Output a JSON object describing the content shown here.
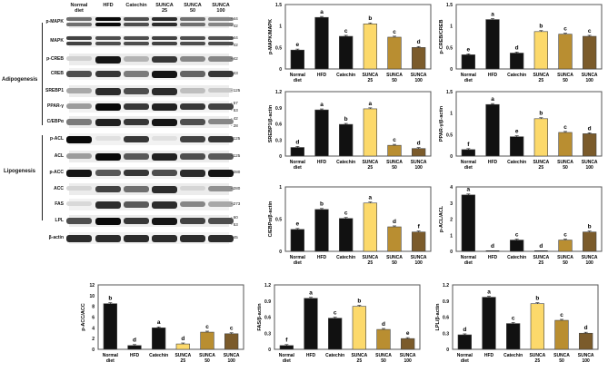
{
  "blot": {
    "lanes": [
      [
        "Normal",
        "diet"
      ],
      [
        "HFD",
        ""
      ],
      [
        "Catechin",
        ""
      ],
      [
        "SUNCA",
        "25"
      ],
      [
        "SUNCA",
        "50"
      ],
      [
        "SUNCA",
        "100"
      ]
    ],
    "groups": {
      "adipogenesis": "Adipogenesis",
      "lipogenesis": "Lipogenesis"
    },
    "rows": [
      {
        "label": "p-MAPK",
        "mw": [
          "44",
          "42"
        ],
        "intensity": [
          0.55,
          1.0,
          0.7,
          0.85,
          0.55,
          0.45
        ],
        "double": true
      },
      {
        "label": "MAPK",
        "mw": [
          "44",
          "42"
        ],
        "intensity": [
          0.75,
          0.7,
          0.7,
          0.75,
          0.7,
          0.7
        ],
        "double": true
      },
      {
        "label": "p-CREB",
        "mw": [
          "42"
        ],
        "intensity": [
          0.12,
          0.95,
          0.25,
          0.8,
          0.45,
          0.45
        ]
      },
      {
        "label": "CREB",
        "mw": [
          "43"
        ],
        "intensity": [
          0.7,
          0.8,
          0.5,
          0.95,
          0.6,
          0.8
        ]
      },
      {
        "label": "SREBP1",
        "mw": [
          "125"
        ],
        "intensity": [
          0.3,
          0.85,
          0.7,
          0.85,
          0.2,
          0.15
        ]
      },
      {
        "label": "PPAR-γ",
        "mw": [
          "57",
          "53"
        ],
        "intensity": [
          0.35,
          1.0,
          0.8,
          0.9,
          0.8,
          0.75
        ]
      },
      {
        "label": "C/EBPα",
        "mw": [
          "42",
          "28"
        ],
        "intensity": [
          0.5,
          0.9,
          0.8,
          0.95,
          0.7,
          0.45
        ]
      },
      {
        "label": "p-ACL",
        "mw": [
          "125"
        ],
        "intensity": [
          1.0,
          0.05,
          0.8,
          0.05,
          0.75,
          0.8
        ]
      },
      {
        "label": "ACL",
        "mw": [
          "125"
        ],
        "intensity": [
          0.35,
          1.0,
          0.65,
          0.9,
          0.7,
          0.65
        ]
      },
      {
        "label": "p-ACC",
        "mw": [
          "280"
        ],
        "intensity": [
          0.95,
          0.65,
          0.8,
          0.7,
          0.85,
          0.95
        ]
      },
      {
        "label": "ACC",
        "mw": [
          "280"
        ],
        "intensity": [
          0.1,
          0.75,
          0.55,
          0.85,
          0.1,
          0.4
        ]
      },
      {
        "label": "FAS",
        "mw": [
          "273"
        ],
        "intensity": [
          0.08,
          0.85,
          0.65,
          0.85,
          0.45,
          0.3
        ]
      },
      {
        "label": "LPL",
        "mw": [
          "60",
          "53"
        ],
        "intensity": [
          0.7,
          1.0,
          0.8,
          0.95,
          0.75,
          0.7
        ]
      },
      {
        "label": "β-actin",
        "mw": [
          "45"
        ],
        "intensity": [
          0.85,
          0.85,
          0.85,
          0.85,
          0.85,
          0.85
        ]
      }
    ]
  },
  "colors": {
    "Normal diet": "#111111",
    "HFD": "#111111",
    "Catechin": "#111111",
    "SUNCA 25": "#fcd96b",
    "SUNCA 50": "#b98e31",
    "SUNCA 100": "#7b5b2b"
  },
  "chart_data": [
    {
      "type": "bar",
      "ylabel": "p-MAPK/MAPK",
      "categories": [
        [
          "Normal",
          "diet"
        ],
        [
          "HFD",
          ""
        ],
        [
          "Catechin",
          ""
        ],
        [
          "SUNCA",
          "25"
        ],
        [
          "SUNCA",
          "50"
        ],
        [
          "SUNCA",
          "100"
        ]
      ],
      "values": [
        0.44,
        1.2,
        0.76,
        1.05,
        0.74,
        0.5
      ],
      "letters": [
        "e",
        "a",
        "c",
        "b",
        "c",
        "d"
      ],
      "ylim": [
        0,
        1.5
      ],
      "yticks": [
        "0",
        "0.5",
        "1",
        "1.5"
      ]
    },
    {
      "type": "bar",
      "ylabel": "p-CREB/CREB",
      "categories": [
        [
          "Normal",
          "diet"
        ],
        [
          "HFD",
          ""
        ],
        [
          "Catechin",
          ""
        ],
        [
          "SUNCA",
          "25"
        ],
        [
          "SUNCA",
          "50"
        ],
        [
          "SUNCA",
          "100"
        ]
      ],
      "values": [
        0.33,
        1.15,
        0.37,
        0.87,
        0.81,
        0.76
      ],
      "letters": [
        "e",
        "a",
        "d",
        "b",
        "c",
        "c"
      ],
      "ylim": [
        0,
        1.5
      ],
      "yticks": [
        "0",
        "0.5",
        "1",
        "1.5"
      ]
    },
    {
      "type": "bar",
      "ylabel": "SREBP1/β-actin",
      "categories": [
        [
          "Normal",
          "diet"
        ],
        [
          "HFD",
          ""
        ],
        [
          "Catechin",
          ""
        ],
        [
          "SUNCA",
          "25"
        ],
        [
          "SUNCA",
          "50"
        ],
        [
          "SUNCA",
          "100"
        ]
      ],
      "values": [
        0.16,
        0.86,
        0.59,
        0.88,
        0.2,
        0.14
      ],
      "letters": [
        "d",
        "a",
        "b",
        "a",
        "c",
        "d"
      ],
      "ylim": [
        0,
        1.2
      ],
      "yticks": [
        "0",
        "0.3",
        "0.6",
        "0.9",
        "1.2"
      ]
    },
    {
      "type": "bar",
      "ylabel": "PPAR-γ/β-actin",
      "categories": [
        [
          "Normal",
          "diet"
        ],
        [
          "HFD",
          ""
        ],
        [
          "Catechin",
          ""
        ],
        [
          "SUNCA",
          "25"
        ],
        [
          "SUNCA",
          "50"
        ],
        [
          "SUNCA",
          "100"
        ]
      ],
      "values": [
        0.15,
        1.2,
        0.45,
        0.87,
        0.55,
        0.52
      ],
      "letters": [
        "f",
        "a",
        "e",
        "b",
        "c",
        "d"
      ],
      "ylim": [
        0,
        1.5
      ],
      "yticks": [
        "0",
        "0.5",
        "1",
        "1.5"
      ]
    },
    {
      "type": "bar",
      "ylabel": "C/EBPα/β-actin",
      "categories": [
        [
          "Normal",
          "diet"
        ],
        [
          "HFD",
          ""
        ],
        [
          "Catechin",
          ""
        ],
        [
          "SUNCA",
          "25"
        ],
        [
          "SUNCA",
          "50"
        ],
        [
          "SUNCA",
          "100"
        ]
      ],
      "values": [
        0.34,
        0.65,
        0.51,
        0.75,
        0.38,
        0.3
      ],
      "letters": [
        "e",
        "b",
        "c",
        "a",
        "d",
        "f"
      ],
      "ylim": [
        0,
        1
      ],
      "yticks": [
        "0",
        "0.5",
        "1"
      ]
    },
    {
      "type": "bar",
      "ylabel": "p-ACL/ACL",
      "categories": [
        [
          "Normal",
          "diet"
        ],
        [
          "HFD",
          ""
        ],
        [
          "Catechin",
          ""
        ],
        [
          "SUNCA",
          "25"
        ],
        [
          "SUNCA",
          "50"
        ],
        [
          "SUNCA",
          "100"
        ]
      ],
      "values": [
        3.5,
        0,
        0.7,
        0,
        0.7,
        1.2
      ],
      "letters": [
        "a",
        "d",
        "c",
        "d",
        "c",
        "b"
      ],
      "ylim": [
        0,
        4
      ],
      "yticks": [
        "0",
        "1",
        "2",
        "3",
        "4"
      ]
    },
    {
      "type": "bar",
      "ylabel": "p-ACC/ACC",
      "categories": [
        [
          "Normal",
          "diet"
        ],
        [
          "HFD",
          ""
        ],
        [
          "Catechin",
          ""
        ],
        [
          "SUNCA",
          "25"
        ],
        [
          "SUNCA",
          "50"
        ],
        [
          "SUNCA",
          "100"
        ]
      ],
      "values": [
        8.5,
        0.7,
        4.0,
        1.0,
        3.2,
        2.9
      ],
      "letters": [
        "b",
        "d",
        "a",
        "d",
        "c",
        "c"
      ],
      "ylim": [
        0,
        12
      ],
      "yticks": [
        "0",
        "2",
        "4",
        "6",
        "8",
        "10",
        "12"
      ]
    },
    {
      "type": "bar",
      "ylabel": "FAS/β-actin",
      "categories": [
        [
          "Normal",
          "diet"
        ],
        [
          "HFD",
          ""
        ],
        [
          "Catechin",
          ""
        ],
        [
          "SUNCA",
          "25"
        ],
        [
          "SUNCA",
          "50"
        ],
        [
          "SUNCA",
          "100"
        ]
      ],
      "values": [
        0.07,
        0.95,
        0.58,
        0.8,
        0.37,
        0.2
      ],
      "letters": [
        "f",
        "a",
        "c",
        "b",
        "d",
        "e"
      ],
      "ylim": [
        0,
        1.2
      ],
      "yticks": [
        "0",
        "0.3",
        "0.6",
        "0.9",
        "1.2"
      ]
    },
    {
      "type": "bar",
      "ylabel": "LPL/β-actin",
      "categories": [
        [
          "Normal",
          "diet"
        ],
        [
          "HFD",
          ""
        ],
        [
          "Catechin",
          ""
        ],
        [
          "SUNCA",
          "25"
        ],
        [
          "SUNCA",
          "50"
        ],
        [
          "SUNCA",
          "100"
        ]
      ],
      "values": [
        0.27,
        0.97,
        0.48,
        0.85,
        0.54,
        0.3
      ],
      "letters": [
        "d",
        "a",
        "c",
        "b",
        "c",
        "d"
      ],
      "ylim": [
        0,
        1.2
      ],
      "yticks": [
        "0",
        "0.3",
        "0.6",
        "0.9",
        "1.2"
      ]
    }
  ]
}
